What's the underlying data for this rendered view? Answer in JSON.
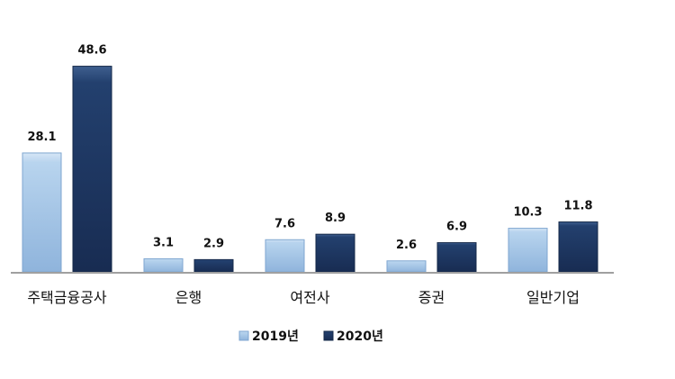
{
  "chart_data": {
    "type": "bar",
    "title": "",
    "xlabel": "",
    "ylabel": "",
    "ylim": [
      0,
      55
    ],
    "grid": false,
    "legend_position": "bottom",
    "categories": [
      "주택금융공사",
      "은행",
      "여전사",
      "증권",
      "일반기업"
    ],
    "series": [
      {
        "name": "2019년",
        "values": [
          28.1,
          3.1,
          7.6,
          2.6,
          10.3
        ],
        "labels": [
          "28.1",
          "3.1",
          "7.6",
          "2.6",
          "10.3"
        ],
        "color": "#a8c8e8"
      },
      {
        "name": "2020년",
        "values": [
          48.6,
          2.9,
          8.9,
          6.9,
          11.8
        ],
        "labels": [
          "48.6",
          "2.9",
          "8.9",
          "6.9",
          "11.8"
        ],
        "color": "#1f3864"
      }
    ]
  }
}
